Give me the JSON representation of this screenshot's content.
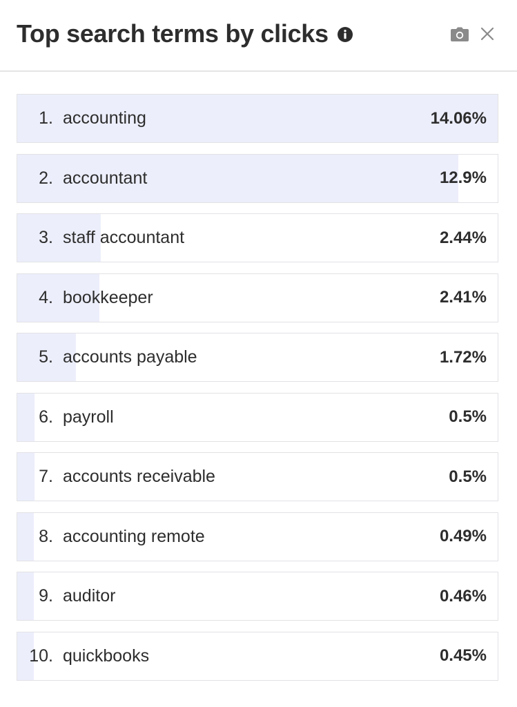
{
  "header": {
    "title": "Top search terms by clicks",
    "icons": {
      "info": "info-icon",
      "camera": "camera-icon",
      "close": "close-icon"
    }
  },
  "colors": {
    "bar_fill": "#eceefb",
    "border": "#e2e2e6",
    "text": "#2d2d2d",
    "icon_gray": "#8a8a8a"
  },
  "terms": [
    {
      "rank": "1.",
      "term": "accounting",
      "percent": "14.06%",
      "share": 14.06
    },
    {
      "rank": "2.",
      "term": "accountant",
      "percent": "12.9%",
      "share": 12.9
    },
    {
      "rank": "3.",
      "term": "staff accountant",
      "percent": "2.44%",
      "share": 2.44
    },
    {
      "rank": "4.",
      "term": "bookkeeper",
      "percent": "2.41%",
      "share": 2.41
    },
    {
      "rank": "5.",
      "term": "accounts payable",
      "percent": "1.72%",
      "share": 1.72
    },
    {
      "rank": "6.",
      "term": "payroll",
      "percent": "0.5%",
      "share": 0.5
    },
    {
      "rank": "7.",
      "term": "accounts receivable",
      "percent": "0.5%",
      "share": 0.5
    },
    {
      "rank": "8.",
      "term": "accounting remote",
      "percent": "0.49%",
      "share": 0.49
    },
    {
      "rank": "9.",
      "term": "auditor",
      "percent": "0.46%",
      "share": 0.46
    },
    {
      "rank": "10.",
      "term": "quickbooks",
      "percent": "0.45%",
      "share": 0.45
    }
  ]
}
